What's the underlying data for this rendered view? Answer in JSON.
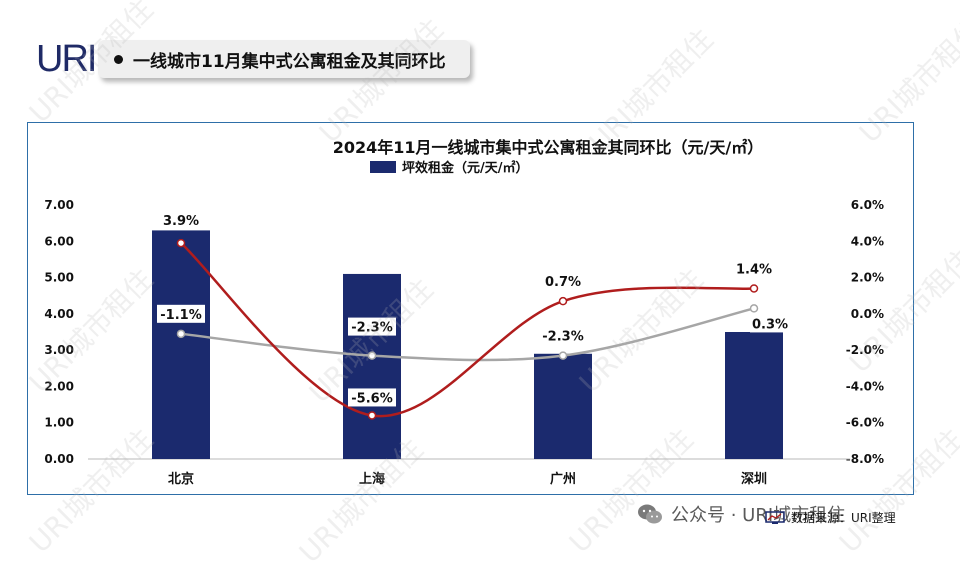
{
  "brand": {
    "logo_text": "URI"
  },
  "header": {
    "title": "一线城市11月集中式公寓租金及其同环比"
  },
  "watermark": {
    "text": "URI城市租住"
  },
  "footer": {
    "wechat_text": "公众号 · URI城市租住",
    "source_text": "数据来源：URI整理"
  },
  "colors": {
    "bar": "#1b2a6e",
    "line_red": "#b01d1d",
    "line_gray": "#a6a6a6",
    "frame": "#2e6fa8"
  },
  "chart_data": {
    "type": "bar",
    "title": "2024年11月一线城市集中式公寓租金其同环比（元/天/㎡）",
    "categories": [
      "北京",
      "上海",
      "广州",
      "深圳"
    ],
    "series": [
      {
        "name": "坪效租金（元/天/㎡）",
        "kind": "bar",
        "axis": "left",
        "values": [
          6.3,
          5.1,
          2.9,
          3.5
        ]
      },
      {
        "name": "",
        "kind": "line",
        "color": "red",
        "axis": "right",
        "values": [
          3.9,
          -5.6,
          0.7,
          1.4
        ],
        "labels": [
          "3.9%",
          "-5.6%",
          "0.7%",
          "1.4%"
        ]
      },
      {
        "name": "",
        "kind": "line",
        "color": "gray",
        "axis": "right",
        "values": [
          -1.1,
          -2.3,
          -2.3,
          0.3
        ],
        "labels": [
          "-1.1%",
          "-2.3%",
          "-2.3%",
          "0.3%"
        ]
      }
    ],
    "y_left": {
      "min": 0,
      "max": 7,
      "ticks": [
        "0.00",
        "1.00",
        "2.00",
        "3.00",
        "4.00",
        "5.00",
        "6.00",
        "7.00"
      ]
    },
    "y_right": {
      "min": -8,
      "max": 6,
      "ticks": [
        "-8.0%",
        "-6.0%",
        "-4.0%",
        "-2.0%",
        "0.0%",
        "2.0%",
        "4.0%",
        "6.0%"
      ]
    },
    "legend": "top-center",
    "grid": false
  }
}
